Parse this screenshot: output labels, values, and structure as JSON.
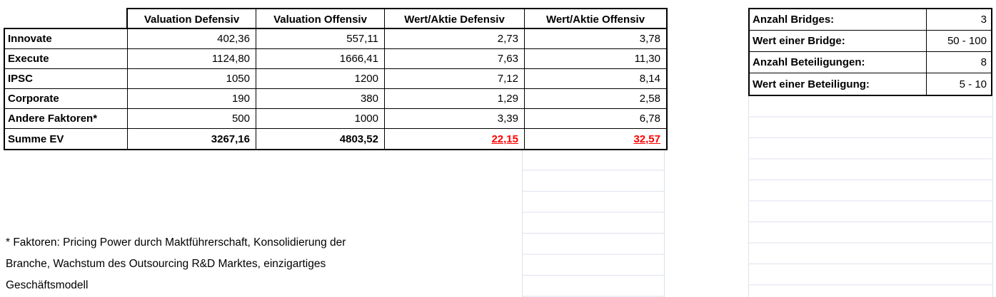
{
  "main_table": {
    "col_headers": [
      "Valuation Defensiv",
      "Valuation Offensiv",
      "Wert/Aktie Defensiv",
      "Wert/Aktie Offensiv"
    ],
    "rows": [
      {
        "label": "Innovate",
        "values": [
          "402,36",
          "557,11",
          "2,73",
          "3,78"
        ]
      },
      {
        "label": "Execute",
        "values": [
          "1124,80",
          "1666,41",
          "7,63",
          "11,30"
        ]
      },
      {
        "label": "IPSC",
        "values": [
          "1050",
          "1200",
          "7,12",
          "8,14"
        ]
      },
      {
        "label": "Corporate",
        "values": [
          "190",
          "380",
          "1,29",
          "2,58"
        ]
      },
      {
        "label": "Andere Faktoren*",
        "values": [
          "500",
          "1000",
          "3,39",
          "6,78"
        ]
      },
      {
        "label": "Summe EV",
        "values": [
          "3267,16",
          "4803,52",
          "22,15",
          "32,57"
        ]
      }
    ]
  },
  "side_table": {
    "rows": [
      {
        "label": "Anzahl Bridges:",
        "value": "3"
      },
      {
        "label": "Wert einer Bridge:",
        "value": "50 - 100"
      },
      {
        "label": "Anzahl Beteiligungen:",
        "value": "8"
      },
      {
        "label": "Wert einer Beteiligung:",
        "value": "5 - 10"
      }
    ]
  },
  "footnote": {
    "lines": [
      "* Faktoren: Pricing Power durch Maktführerschaft, Konsolidierung der",
      "Branche, Wachstum des Outsourcing R&D Marktes, einzigartiges",
      "Geschäftsmodell"
    ]
  },
  "colors": {
    "highlight_red": "#ff0000",
    "table_border": "#000000",
    "gridline": "#dce2ec"
  }
}
